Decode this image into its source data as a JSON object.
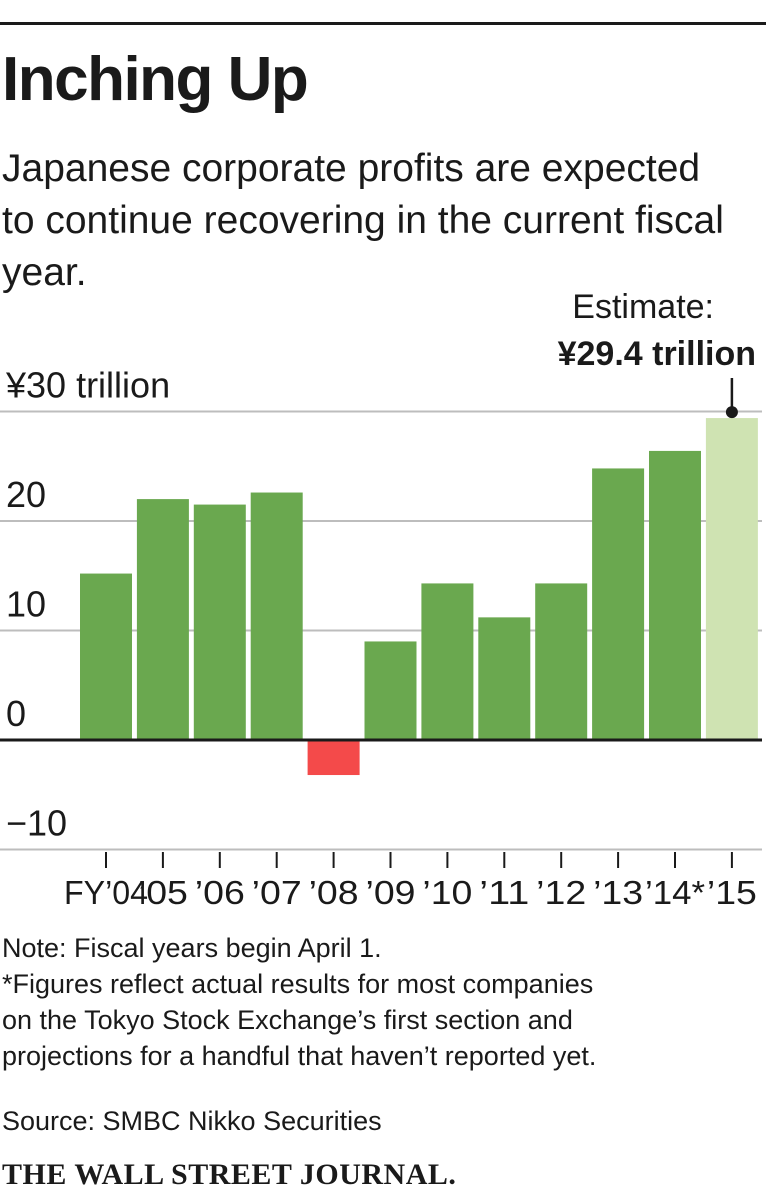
{
  "header": {
    "title": "Inching Up",
    "subtitle": "Japanese corporate profits are expected to continue recovering in the current fiscal year."
  },
  "chart_data": {
    "type": "bar",
    "title": "Inching Up",
    "ylabel": "¥ trillion",
    "ylim": [
      -10,
      30
    ],
    "y_ticks": [
      {
        "value": 30,
        "label": "¥30 trillion"
      },
      {
        "value": 20,
        "label": "20"
      },
      {
        "value": 10,
        "label": "10"
      },
      {
        "value": 0,
        "label": "0"
      },
      {
        "value": -10,
        "label": "−10"
      }
    ],
    "categories": [
      "FY’04",
      "’05",
      "’06",
      "’07",
      "’08",
      "’09",
      "’10",
      "’11",
      "’12",
      "’13",
      "’14*",
      "’15"
    ],
    "values": [
      15.2,
      22.0,
      21.5,
      22.6,
      -3.2,
      9.0,
      14.3,
      11.2,
      14.3,
      24.8,
      26.4,
      29.4
    ],
    "bar_kind": [
      "actual",
      "actual",
      "actual",
      "actual",
      "actual",
      "actual",
      "actual",
      "actual",
      "actual",
      "actual",
      "actual",
      "estimate"
    ],
    "colors": {
      "positive": "#6aa84f",
      "negative": "#f44a4a",
      "estimate": "#cfe3b2",
      "grid": "#bdbdbd",
      "axis": "#1a1a1a"
    },
    "annotation": {
      "category": "’15",
      "label": "Estimate:",
      "value_label": "¥29.4 trillion"
    },
    "grid": true
  },
  "notes": [
    "Note: Fiscal years begin April 1.",
    "*Figures reflect actual results for most companies",
    "on the Tokyo Stock Exchange’s first section and",
    "projections for a handful that haven’t reported yet."
  ],
  "source": "Source: SMBC Nikko Securities",
  "masthead": "THE WALL STREET JOURNAL."
}
